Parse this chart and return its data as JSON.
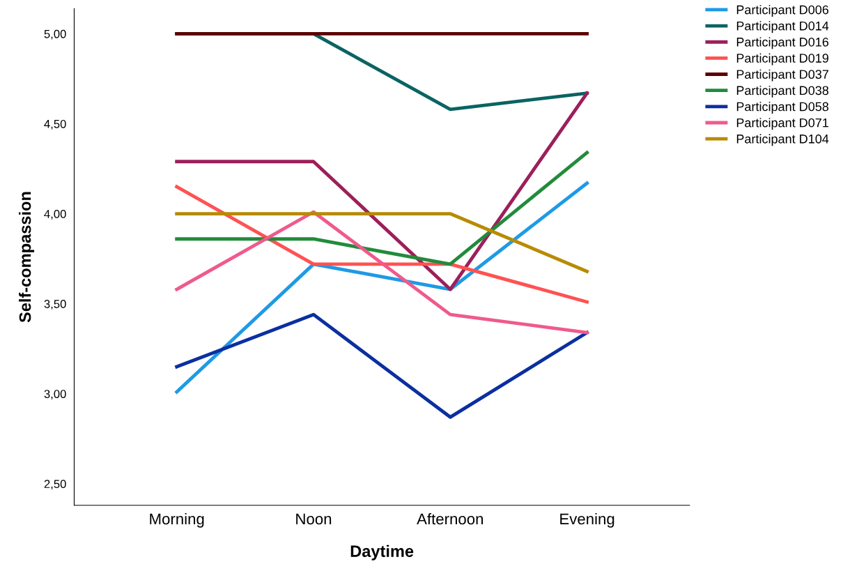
{
  "chart_data": {
    "type": "line",
    "xlabel": "Daytime",
    "ylabel": "Self-compassion",
    "categories": [
      "Morning",
      "Noon",
      "Afternoon",
      "Evening"
    ],
    "ylim": [
      2.38,
      5.14
    ],
    "yticks": [
      {
        "value": 2.5,
        "label": "2,50"
      },
      {
        "value": 3.0,
        "label": "3,00"
      },
      {
        "value": 3.5,
        "label": "3,50"
      },
      {
        "value": 4.0,
        "label": "4,00"
      },
      {
        "value": 4.5,
        "label": "4,50"
      },
      {
        "value": 5.0,
        "label": "5,00"
      }
    ],
    "grid": false,
    "legend": "top right",
    "marker": "none",
    "line_style": "solid",
    "series": [
      {
        "name": "Participant D006",
        "color": "#1e9ae5",
        "values": [
          3.01,
          3.72,
          3.58,
          4.17
        ]
      },
      {
        "name": "Participant D014",
        "color": "#0b6363",
        "values": [
          5.0,
          5.0,
          4.58,
          4.67
        ]
      },
      {
        "name": "Participant D016",
        "color": "#9c1f5a",
        "values": [
          4.29,
          4.29,
          3.58,
          4.67
        ]
      },
      {
        "name": "Participant D019",
        "color": "#ff5252",
        "values": [
          4.15,
          3.72,
          3.72,
          3.51
        ]
      },
      {
        "name": "Participant D037",
        "color": "#5a0000",
        "values": [
          5.0,
          5.0,
          5.0,
          5.0
        ]
      },
      {
        "name": "Participant D038",
        "color": "#228b3b",
        "values": [
          3.86,
          3.86,
          3.72,
          4.34
        ]
      },
      {
        "name": "Participant D058",
        "color": "#0a2fa0",
        "values": [
          3.15,
          3.44,
          2.87,
          3.34
        ]
      },
      {
        "name": "Participant D071",
        "color": "#ef5a8c",
        "values": [
          3.58,
          4.01,
          3.44,
          3.34
        ]
      },
      {
        "name": "Participant D104",
        "color": "#b88b00",
        "values": [
          4.0,
          4.0,
          4.0,
          3.68
        ]
      }
    ]
  }
}
